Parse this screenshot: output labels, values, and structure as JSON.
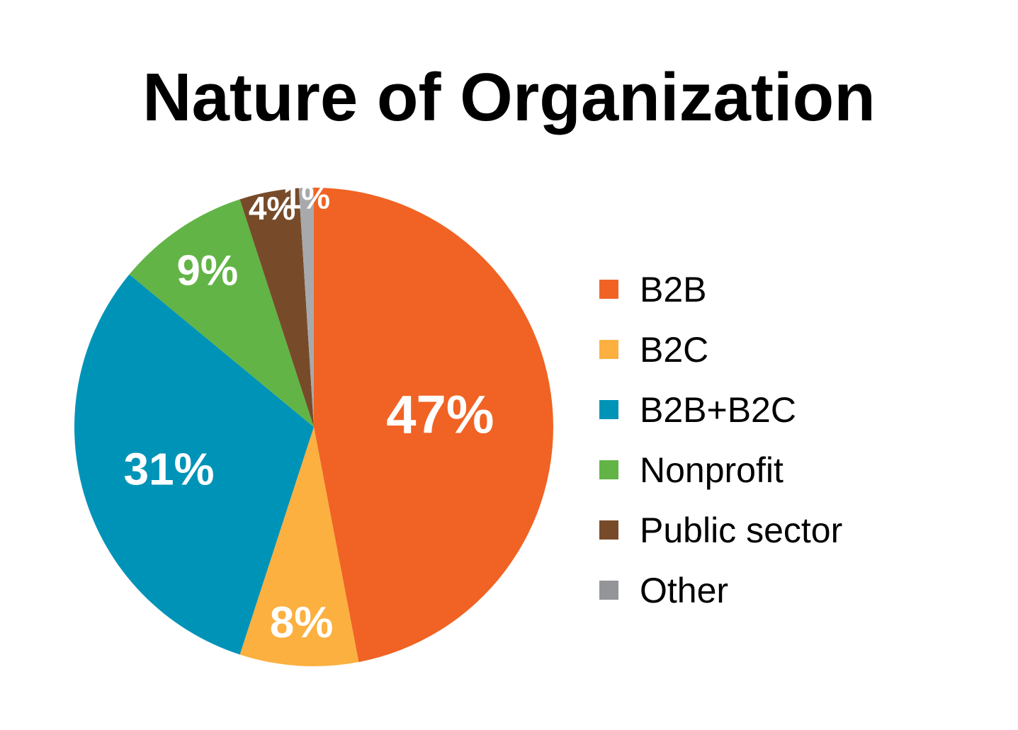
{
  "chart_data": {
    "type": "pie",
    "title": "Nature of Organization",
    "categories": [
      "B2B",
      "B2C",
      "B2B+B2C",
      "Nonprofit",
      "Public sector",
      "Other"
    ],
    "values": [
      47,
      8,
      31,
      9,
      4,
      1
    ],
    "value_labels": [
      "47%",
      "8%",
      "31%",
      "9%",
      "4%",
      "1%"
    ],
    "unit": "%",
    "colors": [
      "#f06324",
      "#fbb040",
      "#0093b8",
      "#62b446",
      "#774b29",
      "#a7a9ac"
    ],
    "legend_colors": [
      "#f06324",
      "#fbb040",
      "#0093b8",
      "#62b446",
      "#774b29",
      "#939598"
    ],
    "start_angle": "12 o'clock",
    "direction": "clockwise",
    "legend_position": "right",
    "grid": false
  }
}
